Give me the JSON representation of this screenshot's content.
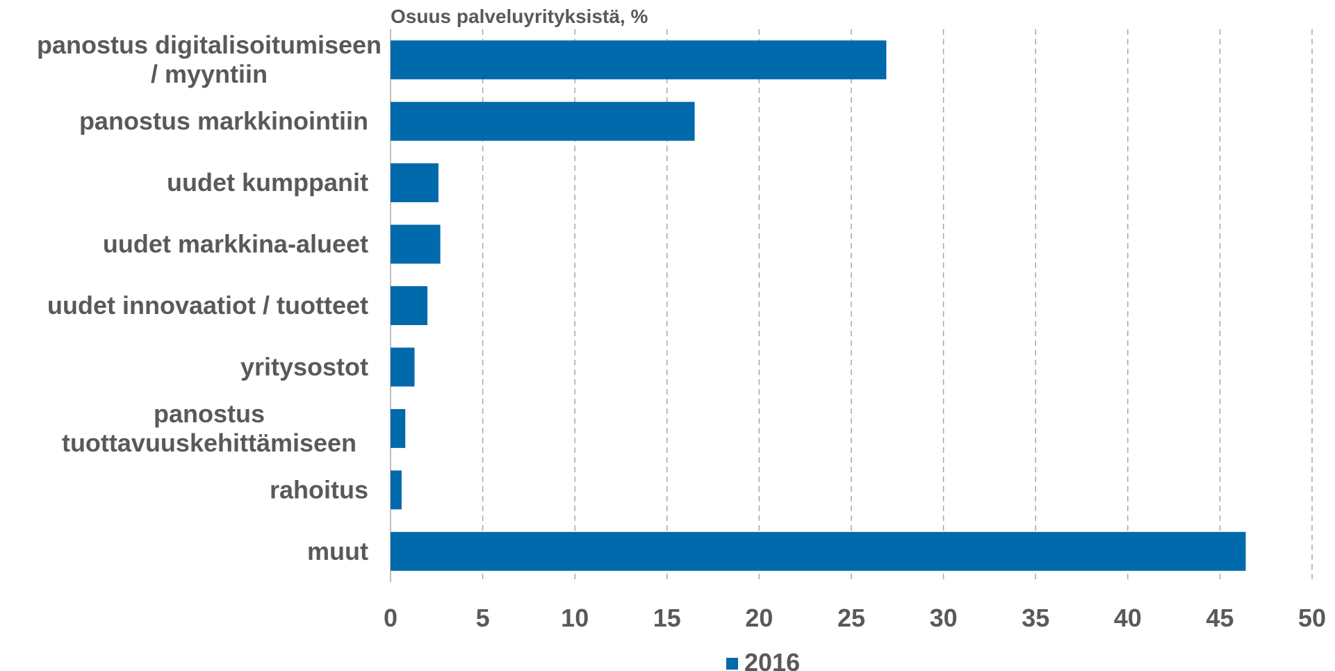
{
  "chart_data": {
    "type": "bar",
    "orientation": "horizontal",
    "axis_title": "Osuus palveluyrityksistä, %",
    "categories": [
      [
        "panostus digitalisoitumiseen",
        "/ myyntiin"
      ],
      [
        "panostus markkinointiin"
      ],
      [
        "uudet kumppanit"
      ],
      [
        "uudet markkina-alueet"
      ],
      [
        "uudet innovaatiot / tuotteet"
      ],
      [
        "yritysostot"
      ],
      [
        "panostus",
        "tuottavuuskehittämiseen"
      ],
      [
        "rahoitus"
      ],
      [
        "muut"
      ]
    ],
    "series": [
      {
        "name": "2016",
        "color": "#006AAC",
        "values": [
          26.9,
          16.5,
          2.6,
          2.7,
          2.0,
          1.3,
          0.8,
          0.6,
          46.4
        ]
      }
    ],
    "xlim": [
      0,
      50
    ],
    "xticks": [
      "0",
      "5",
      "10",
      "15",
      "20",
      "25",
      "30",
      "35",
      "40",
      "45",
      "50"
    ],
    "grid": "vertical dashed",
    "legend_position": "bottom-center"
  }
}
